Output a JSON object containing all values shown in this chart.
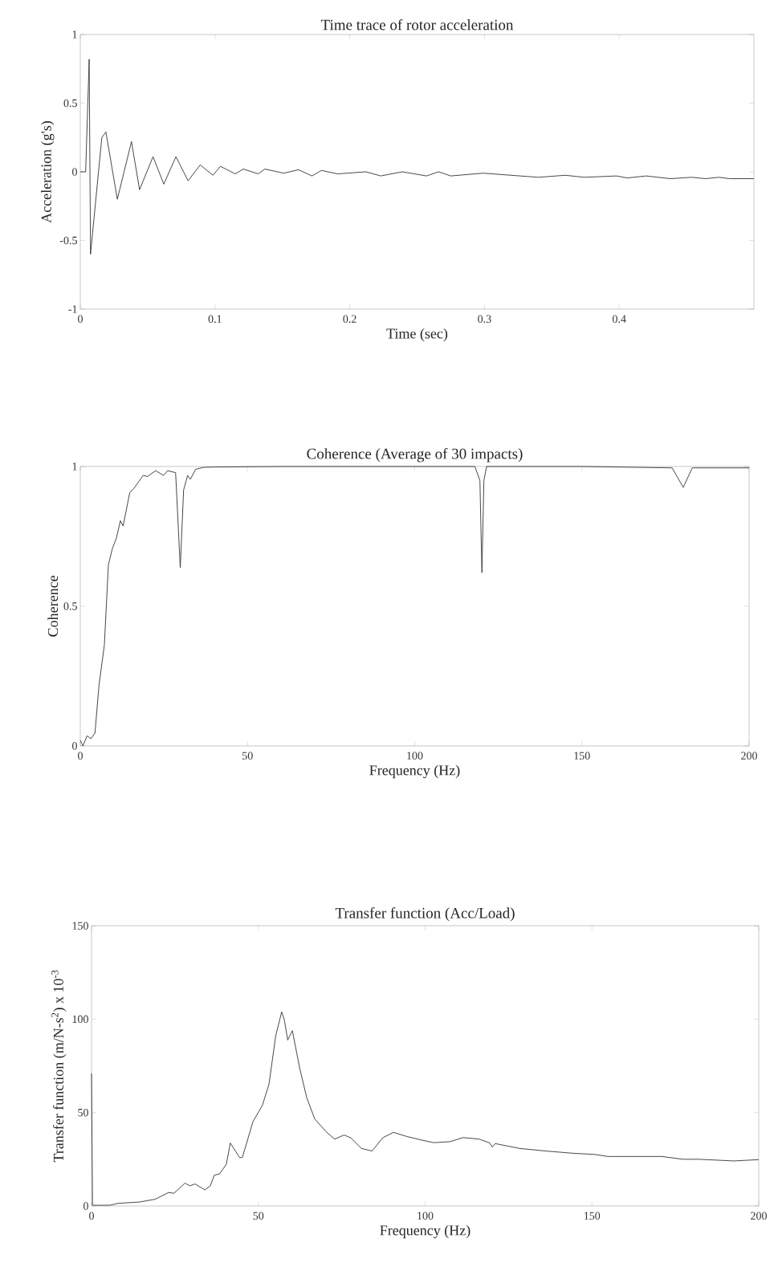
{
  "chart_data": [
    {
      "type": "line",
      "title": "Time trace of rotor acceleration",
      "xlabel": "Time (sec)",
      "ylabel": "Acceleration (g's)",
      "xlim": [
        0,
        0.5
      ],
      "ylim": [
        -1,
        1
      ],
      "xticks": [
        0,
        0.1,
        0.2,
        0.3,
        0.4
      ],
      "yticks": [
        -1,
        -0.5,
        0,
        0.5,
        1
      ],
      "x": [
        0,
        0.004,
        0.0066,
        0.0076,
        0.016,
        0.019,
        0.0275,
        0.038,
        0.044,
        0.054,
        0.062,
        0.071,
        0.08,
        0.089,
        0.0985,
        0.104,
        0.115,
        0.121,
        0.132,
        0.137,
        0.151,
        0.162,
        0.172,
        0.179,
        0.191,
        0.212,
        0.223,
        0.239,
        0.257,
        0.266,
        0.275,
        0.299,
        0.34,
        0.36,
        0.374,
        0.398,
        0.406,
        0.42,
        0.438,
        0.454,
        0.464,
        0.474,
        0.482,
        0.5
      ],
      "series": [
        {
          "color": "#333333",
          "values": [
            0,
            0,
            0.82,
            -0.6,
            0.25,
            0.29,
            -0.2,
            0.22,
            -0.13,
            0.11,
            -0.09,
            0.11,
            -0.065,
            0.05,
            -0.025,
            0.04,
            -0.015,
            0.02,
            -0.015,
            0.02,
            -0.01,
            0.015,
            -0.03,
            0.01,
            -0.015,
            0,
            -0.03,
            0,
            -0.03,
            0,
            -0.03,
            -0.01,
            -0.04,
            -0.025,
            -0.04,
            -0.03,
            -0.045,
            -0.03,
            -0.05,
            -0.04,
            -0.05,
            -0.04,
            -0.05,
            -0.05
          ]
        }
      ]
    },
    {
      "type": "line",
      "title": "Coherence (Average of 30 impacts)",
      "xlabel": "Frequency (Hz)",
      "ylabel": "Coherence",
      "xlim": [
        0,
        200
      ],
      "ylim": [
        0,
        1
      ],
      "xticks": [
        0,
        50,
        100,
        150,
        200
      ],
      "yticks": [
        0,
        0.5,
        1
      ],
      "x": [
        0,
        0.8,
        2,
        3.2,
        4.4,
        5.6,
        7.2,
        8.4,
        9.6,
        10.8,
        12,
        12.8,
        14.8,
        16,
        18.8,
        20.1,
        22.5,
        24.9,
        26.1,
        28.5,
        29.9,
        30.9,
        32.1,
        32.9,
        34.5,
        36.9,
        40,
        60,
        100,
        118,
        119.5,
        120.1,
        120.7,
        121.5,
        150,
        177,
        180.3,
        183,
        200
      ],
      "series": [
        {
          "color": "#333333",
          "values": [
            0.02,
            0,
            0.036,
            0.026,
            0.046,
            0.218,
            0.361,
            0.648,
            0.706,
            0.744,
            0.806,
            0.787,
            0.907,
            0.921,
            0.968,
            0.964,
            0.985,
            0.968,
            0.985,
            0.978,
            0.638,
            0.916,
            0.968,
            0.954,
            0.99,
            0.997,
            0.998,
            1,
            1,
            1,
            0.95,
            0.62,
            0.95,
            1,
            1,
            0.995,
            0.925,
            0.995,
            0.995
          ]
        }
      ]
    },
    {
      "type": "line",
      "title": "Transfer function (Acc/Load)",
      "xlabel": "Frequency (Hz)",
      "ylabel": "Transfer function (m/N-s$^{2}$) x 10$^{-3}$",
      "xlim": [
        0,
        200
      ],
      "ylim": [
        0,
        150
      ],
      "xticks": [
        0,
        50,
        100,
        150,
        200
      ],
      "yticks": [
        0,
        50,
        100,
        150
      ],
      "x": [
        0,
        0.3,
        5.5,
        7.9,
        14.3,
        19.1,
        23.1,
        24.7,
        28,
        29.5,
        31,
        34,
        35.6,
        36.8,
        38.4,
        40.4,
        41.6,
        44.4,
        45.2,
        48.4,
        51.2,
        53.2,
        55.2,
        57,
        57.8,
        58.8,
        60.2,
        62.4,
        64.5,
        66.9,
        70.5,
        72.9,
        75.7,
        77.7,
        80.9,
        84.1,
        87.3,
        90.5,
        94.5,
        99.4,
        102.6,
        107.4,
        111.4,
        116.2,
        119.4,
        120.1,
        121,
        128.3,
        136.3,
        144.4,
        150.8,
        154.8,
        170.9,
        177.3,
        182.1,
        192.5,
        200
      ],
      "series": [
        {
          "color": "#333333",
          "values": [
            71,
            0.4,
            0.4,
            1.4,
            2.1,
            3.6,
            7.2,
            6.8,
            12.2,
            10.8,
            11.8,
            8.6,
            10.8,
            16.5,
            17.2,
            22.3,
            33.7,
            25.9,
            25.9,
            45.2,
            53.8,
            65.2,
            91,
            103.9,
            99.6,
            88.8,
            93.8,
            73.8,
            58,
            46.6,
            39.4,
            35.8,
            38,
            36.5,
            30.8,
            29.4,
            36.5,
            39.4,
            37.2,
            35.1,
            33.9,
            34.4,
            36.6,
            35.8,
            33.7,
            31.5,
            33.4,
            30.8,
            29.4,
            28.2,
            27.6,
            26.5,
            26.5,
            25,
            25,
            24.1,
            24.8
          ]
        }
      ]
    }
  ]
}
